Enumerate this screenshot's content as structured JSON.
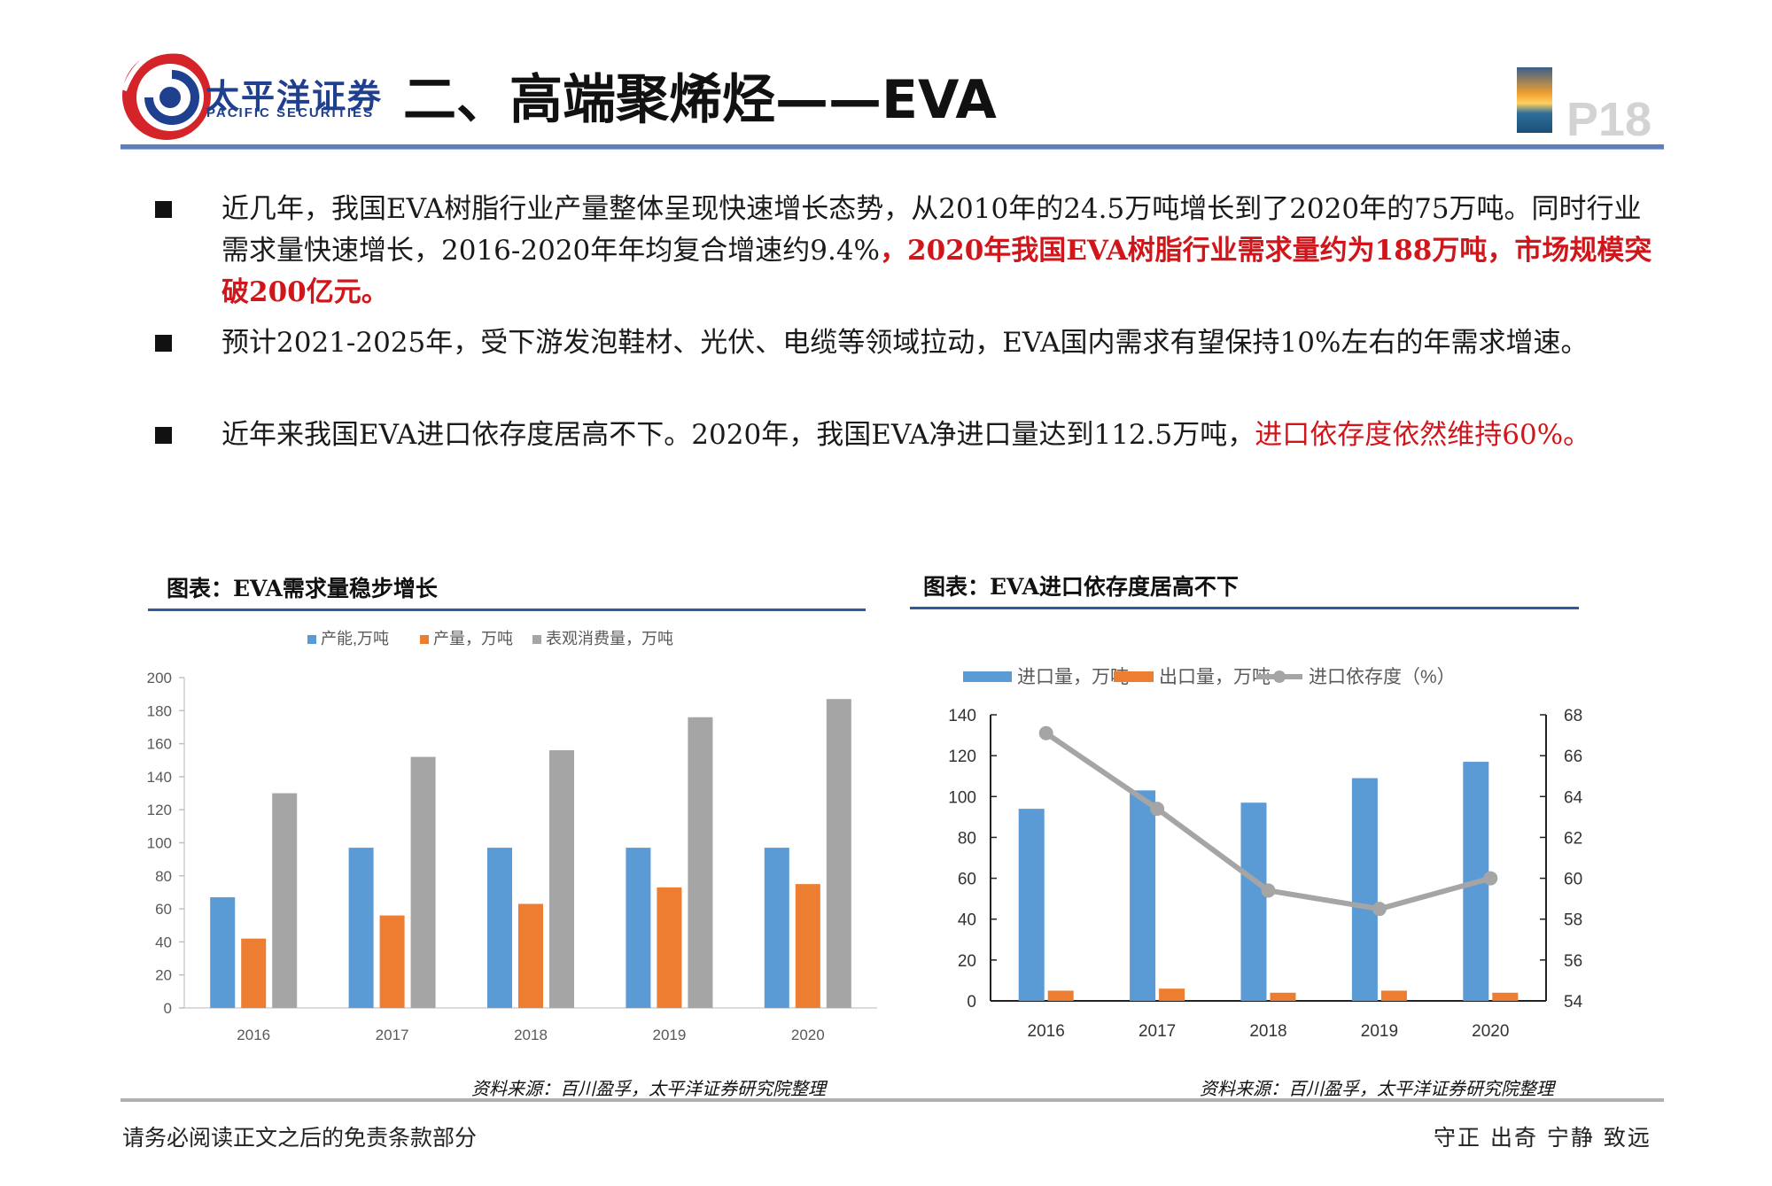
{
  "header": {
    "brand_cn": "太平洋证券",
    "brand_en": "PACIFIC SECURITIES",
    "title": "二、高端聚烯烃——EVA",
    "page_number": "P18"
  },
  "bullets": [
    {
      "text": "近几年，我国EVA树脂行业产量整体呈现快速增长态势，从2010年的24.5万吨增长到了2020年的75万吨。同时行业需求量快速增长，2016-2020年年均复合增速约9.4%",
      "highlight": "，2020年我国EVA树脂行业需求量约为188万吨，市场规模突破200亿元。"
    },
    {
      "text": "预计2021-2025年，受下游发泡鞋材、光伏、电缆等领域拉动，EVA国内需求有望保持10%左右的年需求增速。",
      "highlight": ""
    },
    {
      "text": "近年来我国EVA进口依存度居高不下。2020年，我国EVA净进口量达到112.5万吨，",
      "highlight": "进口依存度依然维持60%。"
    }
  ],
  "chart_titles": {
    "left": "图表：EVA需求量稳步增长",
    "right": "图表：EVA进口依存度居高不下"
  },
  "sources": {
    "left": "资料来源：百川盈孚，太平洋证券研究院整理",
    "right": "资料来源：百川盈孚，太平洋证券研究院整理"
  },
  "footer": {
    "left": "请务必阅读正文之后的免责条款部分",
    "right": "守正 出奇 宁静 致远"
  },
  "colors": {
    "blue": "#5b9bd5",
    "orange": "#ed7d31",
    "gray": "#a5a5a5",
    "line_gray": "#a5a5a5",
    "highlight_red": "#d0161b",
    "brand_blue": "#1f3f8f",
    "logo_red": "#d4242a"
  },
  "chart_data": [
    {
      "type": "bar",
      "categories": [
        "2016",
        "2017",
        "2018",
        "2019",
        "2020"
      ],
      "series": [
        {
          "name": "产能,万吨",
          "values": [
            67,
            97,
            97,
            97,
            97
          ]
        },
        {
          "name": "产量，万吨",
          "values": [
            42,
            56,
            63,
            73,
            75
          ]
        },
        {
          "name": "表观消费量，万吨",
          "values": [
            130,
            152,
            156,
            176,
            187
          ]
        }
      ],
      "ylim": [
        0,
        200
      ],
      "yticks": [
        0,
        20,
        40,
        60,
        80,
        100,
        120,
        140,
        160,
        180,
        200
      ],
      "legend": "top",
      "grid": false
    },
    {
      "type": "bar",
      "categories": [
        "2016",
        "2017",
        "2018",
        "2019",
        "2020"
      ],
      "series": [
        {
          "name": "进口量，万吨",
          "type": "bar",
          "axis": "left",
          "values": [
            94,
            103,
            97,
            109,
            117
          ]
        },
        {
          "name": "出口量，万吨",
          "type": "bar",
          "axis": "left",
          "values": [
            5,
            6,
            4,
            5,
            4
          ]
        },
        {
          "name": "进口依存度（%）",
          "type": "line",
          "axis": "right",
          "values": [
            67.1,
            63.4,
            59.4,
            58.5,
            60.0
          ]
        }
      ],
      "ylim_left": [
        0,
        140
      ],
      "yticks_left": [
        0,
        20,
        40,
        60,
        80,
        100,
        120,
        140
      ],
      "ylim_right": [
        54,
        68
      ],
      "yticks_right": [
        54,
        56,
        58,
        60,
        62,
        64,
        66,
        68
      ],
      "legend": "top",
      "grid": false
    }
  ]
}
